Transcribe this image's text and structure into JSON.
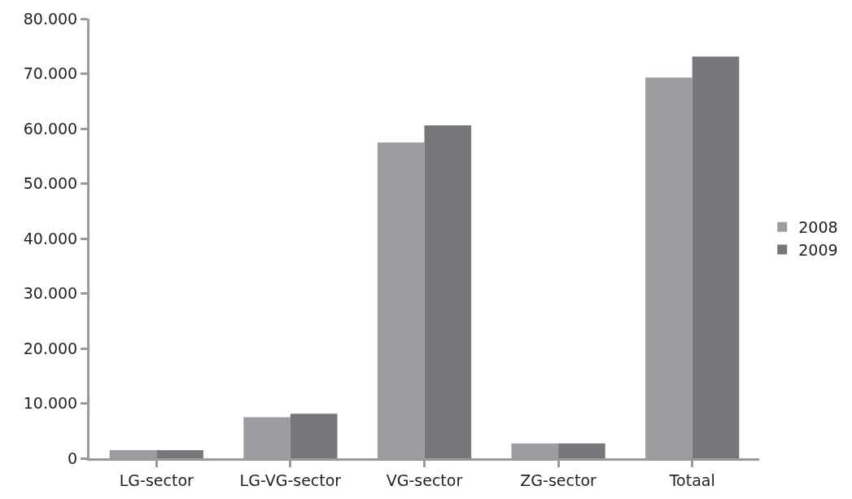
{
  "chart_data": {
    "type": "bar",
    "categories": [
      "LG-sector",
      "LG-VG-sector",
      "VG-sector",
      "ZG-sector",
      "Totaal"
    ],
    "series": [
      {
        "name": "2008",
        "color": "#9c9da1",
        "values": [
          1500,
          7500,
          57500,
          2700,
          69300
        ]
      },
      {
        "name": "2009",
        "color": "#76777b",
        "values": [
          1500,
          8100,
          60600,
          2700,
          73100
        ]
      }
    ],
    "ylim": [
      0,
      80000
    ],
    "yticks": [
      0,
      {
        "value": 10000,
        "label": "10.000"
      },
      {
        "value": 20000,
        "label": "20.000"
      },
      {
        "value": 30000,
        "label": "30.000"
      },
      {
        "value": 40000,
        "label": "40.000"
      },
      {
        "value": 50000,
        "label": "50.000"
      },
      {
        "value": 60000,
        "label": "60.000"
      },
      {
        "value": 70000,
        "label": "70.000"
      },
      {
        "value": 80000,
        "label": "80.000"
      }
    ],
    "legend": "right"
  }
}
